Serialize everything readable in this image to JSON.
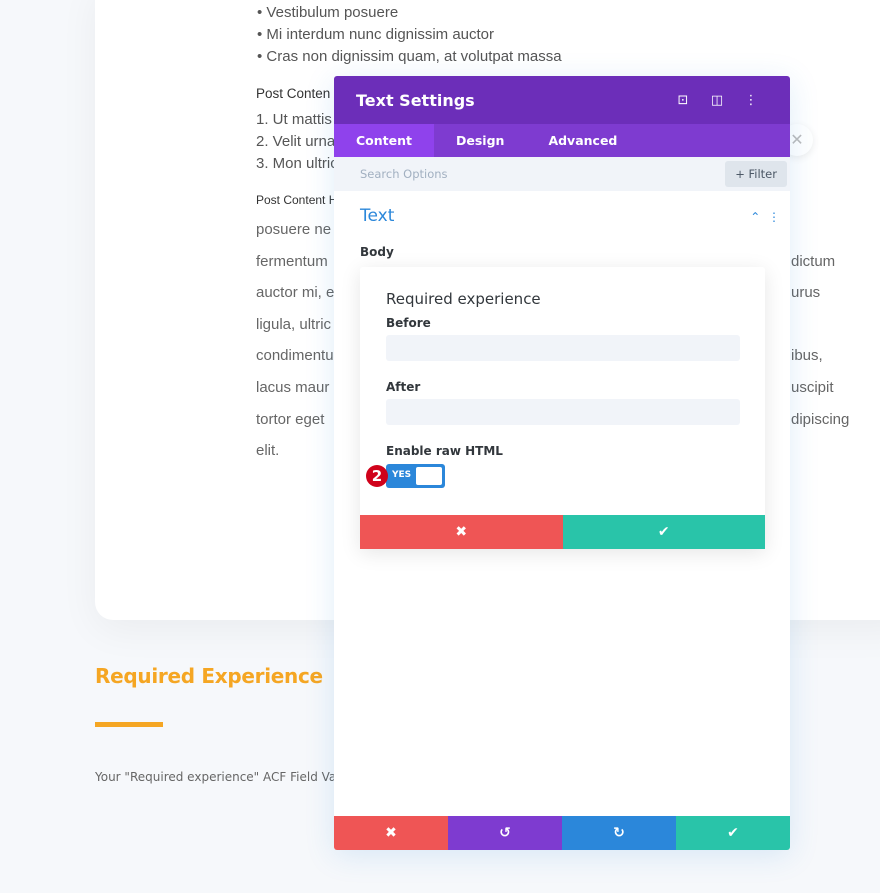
{
  "background": {
    "bullets": [
      "Vestibulum posuere",
      "Mi interdum nunc dignissim auctor",
      "Cras non dignissim quam, at volutpat massa"
    ],
    "post_content_1": "Post Conten",
    "ordered": [
      "1. Ut mattis",
      "2. Velit urna",
      "3. Mon ultric"
    ],
    "post_content_2": "Post Content H",
    "body_left": [
      "posuere ne",
      "fermentum",
      "auctor mi, e",
      "ligula, ultric",
      "condimentu",
      "lacus maur",
      "tortor eget",
      "elit."
    ],
    "body_right": [
      "",
      "dictum",
      "urus",
      "",
      "ibus,",
      "uscipit",
      "dipiscing",
      ""
    ],
    "heading": "Required Experience",
    "acf_text": "Your \"Required experience\" ACF Field Value"
  },
  "modal": {
    "title": "Text Settings",
    "tabs": [
      "Content",
      "Design",
      "Advanced"
    ],
    "search_placeholder": "Search Options",
    "filter_label": "+ Filter",
    "section_title": "Text",
    "body_label": "Body",
    "popup": {
      "title": "Required experience",
      "before_label": "Before",
      "before_value": "",
      "after_label": "After",
      "after_value": "",
      "raw_html_label": "Enable raw HTML",
      "toggle_label": "YES",
      "toggle_on": true,
      "badge": "2"
    },
    "colors": {
      "header": "#6c2eb9",
      "tabs": "#7e3bd0",
      "cancel": "#ef5555",
      "save": "#29c4a9",
      "undo": "#7e3bd0",
      "redo": "#2b87da",
      "accent": "#f5a623"
    }
  }
}
